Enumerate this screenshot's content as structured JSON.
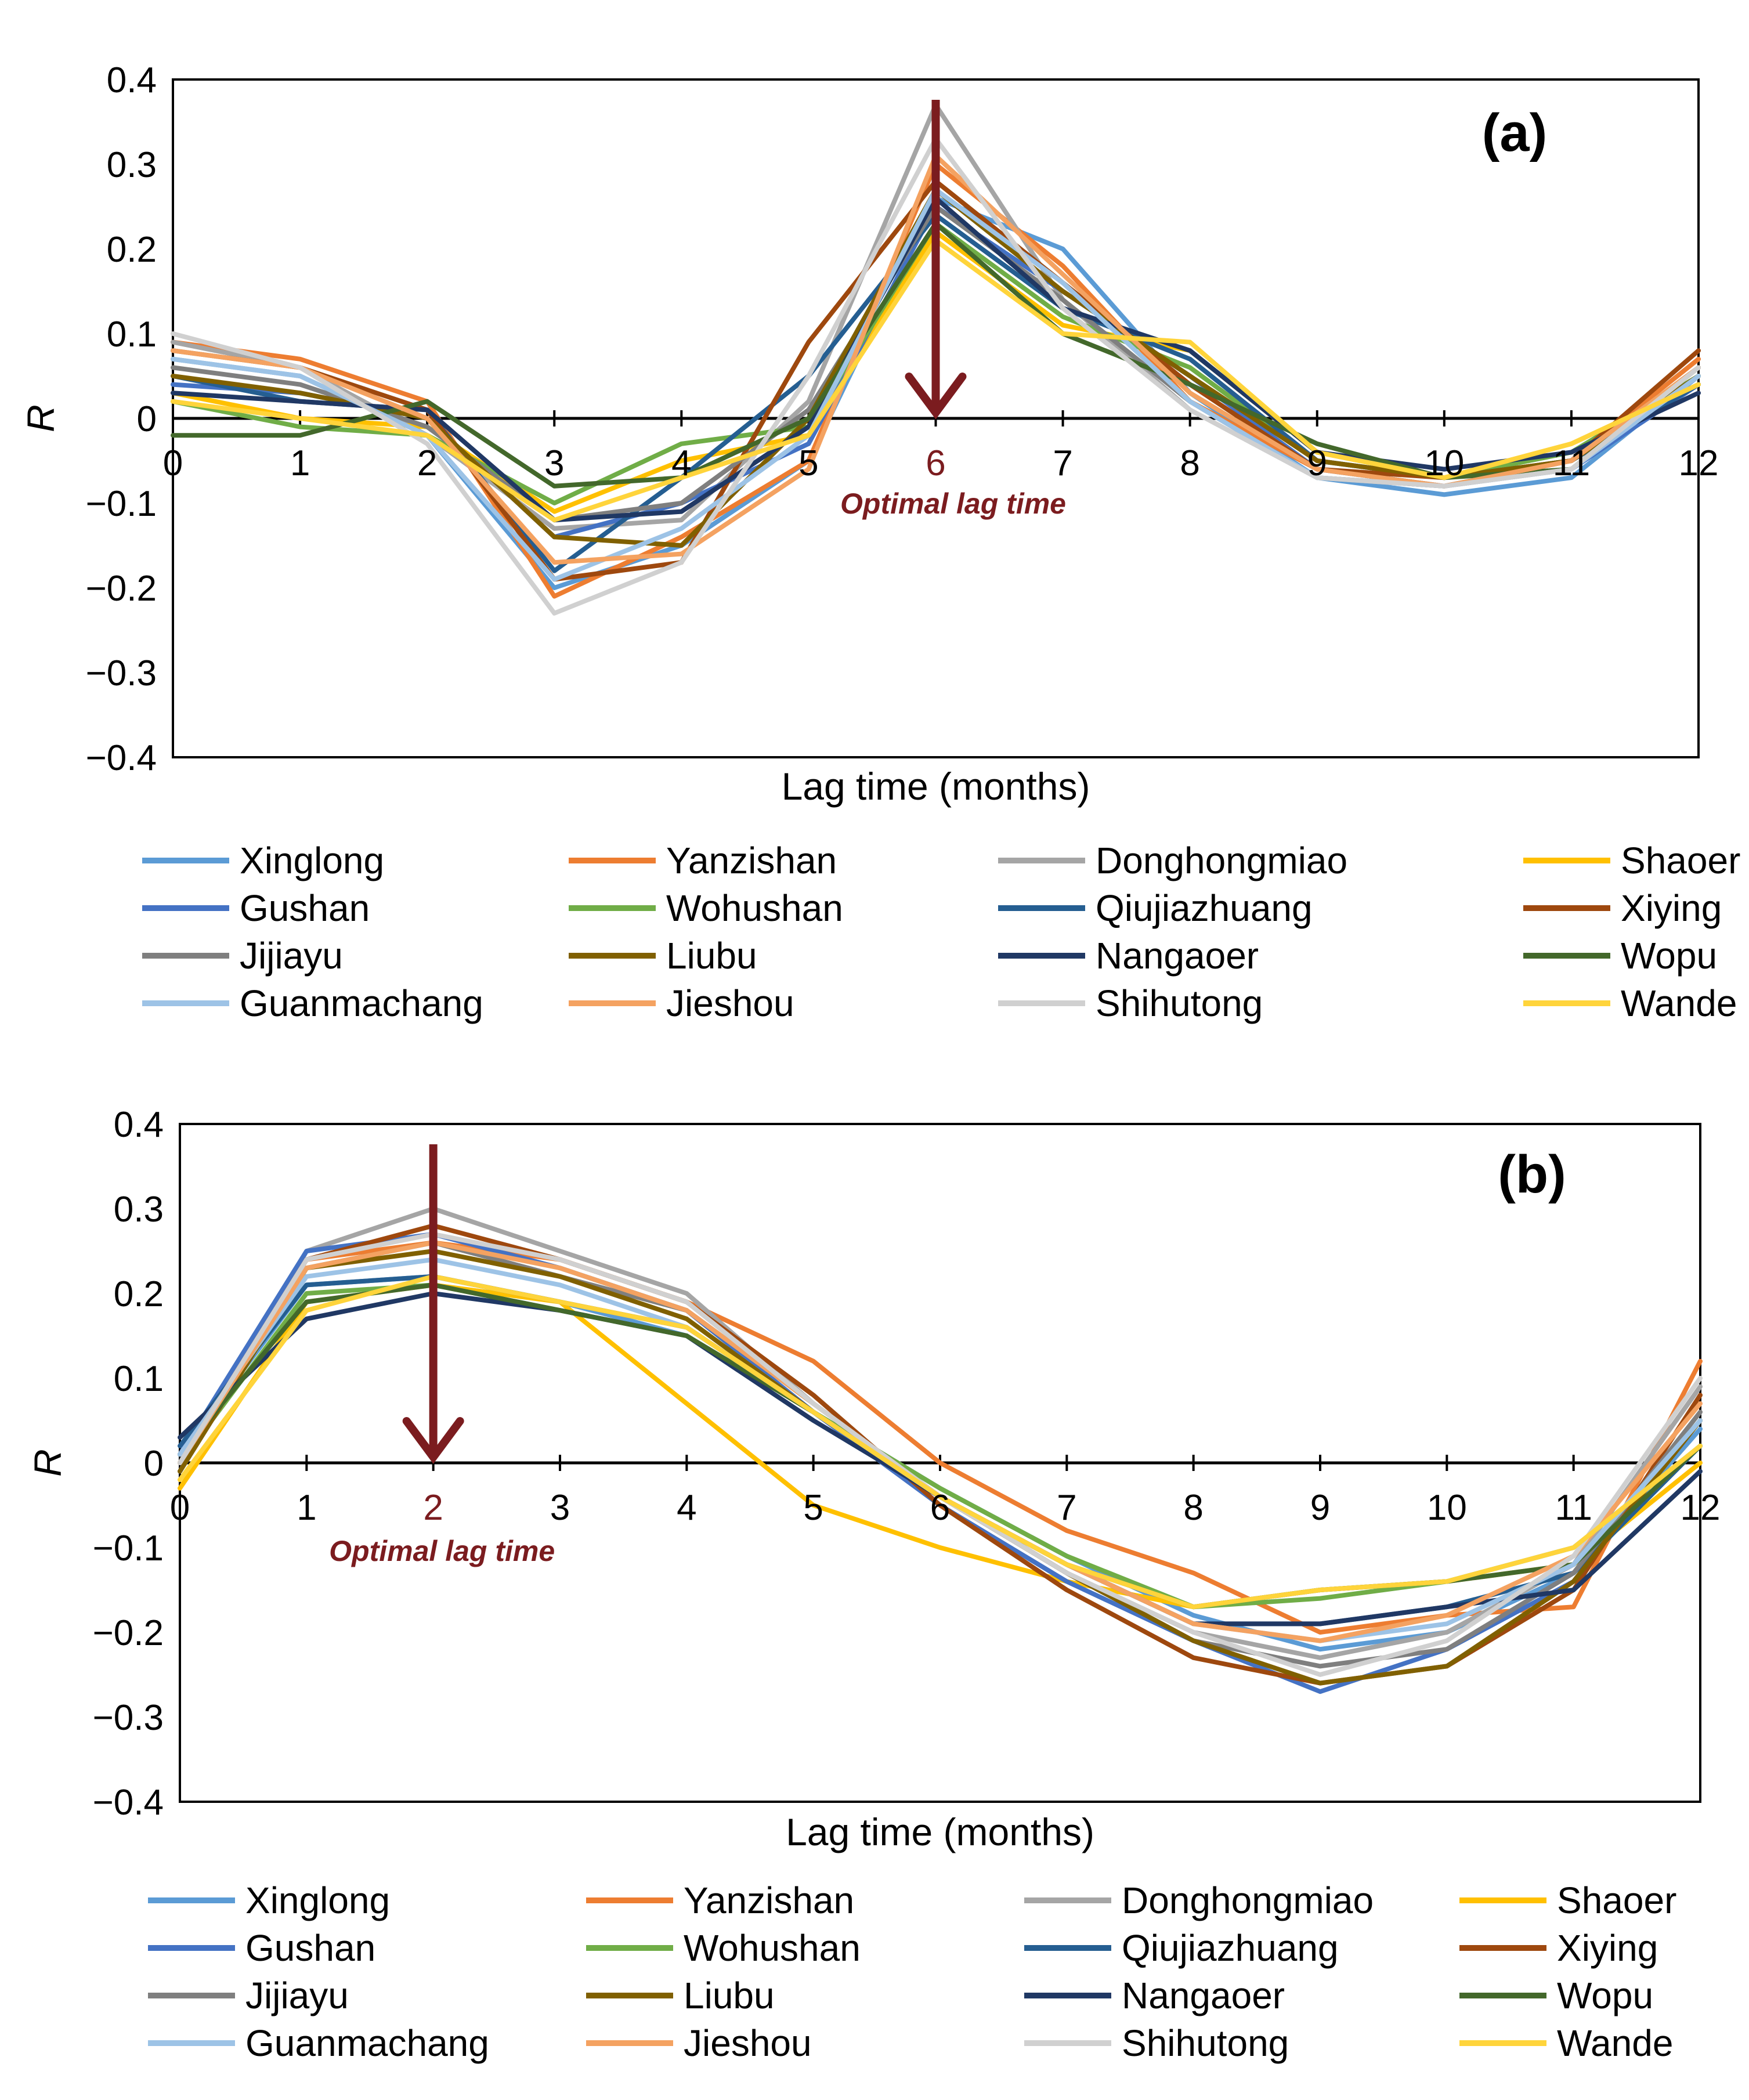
{
  "chart_data": [
    {
      "type": "line",
      "panel_label": "(a)",
      "xlabel": "Lag time (months)",
      "ylabel": "R",
      "x": [
        0,
        1,
        2,
        3,
        4,
        5,
        6,
        7,
        8,
        9,
        10,
        11,
        12
      ],
      "x_ticks": [
        "0",
        "1",
        "2",
        "3",
        "4",
        "5",
        "6",
        "7",
        "8",
        "9",
        "10",
        "11",
        "12"
      ],
      "ylim": [
        -0.4,
        0.4
      ],
      "y_ticks": [
        "0.4",
        "0.3",
        "0.2",
        "0.1",
        "0",
        "−0.1",
        "−0.2",
        "−0.3",
        "−0.4"
      ],
      "highlight_x": 6,
      "annotation": "Optimal lag time",
      "arrow_color": "#7b1c1f",
      "series": [
        {
          "name": "Xinglong",
          "color": "#5b9bd5",
          "values": [
            0.07,
            0.05,
            -0.02,
            -0.2,
            -0.15,
            -0.05,
            0.26,
            0.2,
            0.03,
            -0.07,
            -0.09,
            -0.07,
            0.05
          ]
        },
        {
          "name": "Yanzishan",
          "color": "#ed7d31",
          "values": [
            0.09,
            0.07,
            0.02,
            -0.21,
            -0.14,
            -0.05,
            0.3,
            0.18,
            0.02,
            -0.06,
            -0.08,
            -0.05,
            0.07
          ]
        },
        {
          "name": "Donghongmiao",
          "color": "#a5a5a5",
          "values": [
            0.09,
            0.06,
            -0.02,
            -0.13,
            -0.12,
            0.02,
            0.37,
            0.14,
            0.01,
            -0.07,
            -0.08,
            -0.05,
            0.06
          ]
        },
        {
          "name": "Shaoer",
          "color": "#ffc000",
          "values": [
            0.03,
            0.0,
            -0.01,
            -0.11,
            -0.05,
            -0.02,
            0.22,
            0.11,
            0.08,
            -0.04,
            -0.07,
            -0.03,
            0.04
          ]
        },
        {
          "name": "Gushan",
          "color": "#4472c4",
          "values": [
            0.04,
            0.03,
            0.0,
            -0.14,
            -0.1,
            -0.03,
            0.25,
            0.15,
            0.05,
            -0.06,
            -0.08,
            -0.06,
            0.04
          ]
        },
        {
          "name": "Wohushan",
          "color": "#70ad47",
          "values": [
            0.02,
            -0.01,
            -0.02,
            -0.1,
            -0.03,
            -0.01,
            0.23,
            0.12,
            0.06,
            -0.05,
            -0.07,
            -0.04,
            0.05
          ]
        },
        {
          "name": "Qiujiazhuang",
          "color": "#255e91",
          "values": [
            0.05,
            0.02,
            0.01,
            -0.18,
            -0.07,
            0.05,
            0.24,
            0.13,
            0.07,
            -0.05,
            -0.07,
            -0.05,
            0.04
          ]
        },
        {
          "name": "Xiying",
          "color": "#9e480e",
          "values": [
            0.08,
            0.06,
            0.01,
            -0.19,
            -0.17,
            0.09,
            0.28,
            0.16,
            0.04,
            -0.06,
            -0.07,
            -0.05,
            0.08
          ]
        },
        {
          "name": "Jijiayu",
          "color": "#7f7f7f",
          "values": [
            0.06,
            0.04,
            -0.01,
            -0.12,
            -0.1,
            0.01,
            0.25,
            0.14,
            0.02,
            -0.07,
            -0.08,
            -0.05,
            0.05
          ]
        },
        {
          "name": "Liubu",
          "color": "#806000",
          "values": [
            0.05,
            0.03,
            0.0,
            -0.14,
            -0.15,
            0.0,
            0.27,
            0.15,
            0.05,
            -0.05,
            -0.07,
            -0.05,
            0.05
          ]
        },
        {
          "name": "Nangaoer",
          "color": "#203864",
          "values": [
            0.03,
            0.02,
            0.01,
            -0.12,
            -0.11,
            -0.01,
            0.26,
            0.13,
            0.08,
            -0.04,
            -0.06,
            -0.04,
            0.03
          ]
        },
        {
          "name": "Wopu",
          "color": "#43682b",
          "values": [
            -0.02,
            -0.02,
            0.02,
            -0.08,
            -0.07,
            0.0,
            0.23,
            0.1,
            0.04,
            -0.03,
            -0.07,
            -0.06,
            0.06
          ]
        },
        {
          "name": "Guanmachang",
          "color": "#9dc3e6",
          "values": [
            0.07,
            0.05,
            -0.02,
            -0.19,
            -0.13,
            -0.02,
            0.27,
            0.16,
            0.02,
            -0.07,
            -0.08,
            -0.06,
            0.05
          ]
        },
        {
          "name": "Jieshou",
          "color": "#f4a261",
          "values": [
            0.08,
            0.06,
            0.0,
            -0.17,
            -0.16,
            -0.06,
            0.31,
            0.17,
            0.03,
            -0.06,
            -0.08,
            -0.05,
            0.06
          ]
        },
        {
          "name": "Shihutong",
          "color": "#d0d0d0",
          "values": [
            0.1,
            0.06,
            -0.03,
            -0.23,
            -0.17,
            0.05,
            0.33,
            0.13,
            0.01,
            -0.07,
            -0.08,
            -0.06,
            0.06
          ]
        },
        {
          "name": "Wande",
          "color": "#ffd43b",
          "values": [
            0.02,
            0.0,
            -0.02,
            -0.12,
            -0.07,
            -0.02,
            0.21,
            0.1,
            0.09,
            -0.04,
            -0.07,
            -0.03,
            0.04
          ]
        }
      ]
    },
    {
      "type": "line",
      "panel_label": "(b)",
      "xlabel": "Lag time (months)",
      "ylabel": "R",
      "x": [
        0,
        1,
        2,
        3,
        4,
        5,
        6,
        7,
        8,
        9,
        10,
        11,
        12
      ],
      "x_ticks": [
        "0",
        "1",
        "2",
        "3",
        "4",
        "5",
        "6",
        "7",
        "8",
        "9",
        "10",
        "11",
        "12"
      ],
      "ylim": [
        -0.4,
        0.4
      ],
      "y_ticks": [
        "0.4",
        "0.3",
        "0.2",
        "0.1",
        "0",
        "−0.1",
        "−0.2",
        "−0.3",
        "−0.4"
      ],
      "highlight_x": 2,
      "annotation": "Optimal lag time",
      "arrow_color": "#7b1c1f",
      "series": [
        {
          "name": "Xinglong",
          "color": "#5b9bd5",
          "values": [
            0.01,
            0.21,
            0.22,
            0.19,
            0.15,
            0.06,
            -0.03,
            -0.11,
            -0.18,
            -0.22,
            -0.2,
            -0.13,
            0.04
          ]
        },
        {
          "name": "Yanzishan",
          "color": "#ed7d31",
          "values": [
            0.0,
            0.24,
            0.26,
            0.24,
            0.19,
            0.12,
            0.0,
            -0.08,
            -0.13,
            -0.2,
            -0.18,
            -0.17,
            0.12
          ]
        },
        {
          "name": "Donghongmiao",
          "color": "#a5a5a5",
          "values": [
            -0.01,
            0.25,
            0.3,
            0.25,
            0.2,
            0.07,
            -0.04,
            -0.13,
            -0.2,
            -0.23,
            -0.2,
            -0.12,
            0.09
          ]
        },
        {
          "name": "Shaoer",
          "color": "#ffc000",
          "values": [
            -0.03,
            0.19,
            0.21,
            0.19,
            0.07,
            -0.05,
            -0.1,
            -0.14,
            -0.17,
            -0.15,
            -0.14,
            -0.12,
            0.0
          ]
        },
        {
          "name": "Gushan",
          "color": "#4472c4",
          "values": [
            0.01,
            0.25,
            0.27,
            0.23,
            0.18,
            0.06,
            -0.05,
            -0.14,
            -0.21,
            -0.27,
            -0.22,
            -0.14,
            0.05
          ]
        },
        {
          "name": "Wohushan",
          "color": "#70ad47",
          "values": [
            0.0,
            0.2,
            0.21,
            0.18,
            0.15,
            0.06,
            -0.03,
            -0.11,
            -0.17,
            -0.16,
            -0.14,
            -0.1,
            0.02
          ]
        },
        {
          "name": "Qiujiazhuang",
          "color": "#255e91",
          "values": [
            0.02,
            0.21,
            0.22,
            0.19,
            0.16,
            0.06,
            -0.04,
            -0.12,
            -0.19,
            -0.19,
            -0.17,
            -0.13,
            0.02
          ]
        },
        {
          "name": "Xiying",
          "color": "#9e480e",
          "values": [
            0.0,
            0.24,
            0.28,
            0.24,
            0.19,
            0.08,
            -0.05,
            -0.15,
            -0.23,
            -0.26,
            -0.24,
            -0.15,
            0.08
          ]
        },
        {
          "name": "Jijiayu",
          "color": "#7f7f7f",
          "values": [
            -0.01,
            0.23,
            0.26,
            0.22,
            0.18,
            0.07,
            -0.04,
            -0.13,
            -0.21,
            -0.24,
            -0.22,
            -0.13,
            0.06
          ]
        },
        {
          "name": "Liubu",
          "color": "#806000",
          "values": [
            -0.01,
            0.23,
            0.25,
            0.22,
            0.17,
            0.06,
            -0.04,
            -0.13,
            -0.21,
            -0.26,
            -0.24,
            -0.14,
            0.05
          ]
        },
        {
          "name": "Nangaoer",
          "color": "#203864",
          "values": [
            0.03,
            0.17,
            0.2,
            0.18,
            0.15,
            0.05,
            -0.04,
            -0.12,
            -0.19,
            -0.19,
            -0.17,
            -0.15,
            -0.01
          ]
        },
        {
          "name": "Wopu",
          "color": "#43682b",
          "values": [
            0.01,
            0.19,
            0.21,
            0.18,
            0.15,
            0.06,
            -0.04,
            -0.12,
            -0.17,
            -0.15,
            -0.14,
            -0.12,
            0.02
          ]
        },
        {
          "name": "Guanmachang",
          "color": "#9dc3e6",
          "values": [
            0.01,
            0.22,
            0.24,
            0.21,
            0.16,
            0.06,
            -0.04,
            -0.12,
            -0.19,
            -0.21,
            -0.19,
            -0.12,
            0.05
          ]
        },
        {
          "name": "Jieshou",
          "color": "#f4a261",
          "values": [
            0.0,
            0.23,
            0.26,
            0.23,
            0.18,
            0.07,
            -0.04,
            -0.12,
            -0.19,
            -0.21,
            -0.18,
            -0.11,
            0.07
          ]
        },
        {
          "name": "Shihutong",
          "color": "#d0d0d0",
          "values": [
            0.0,
            0.24,
            0.27,
            0.24,
            0.19,
            0.07,
            -0.04,
            -0.13,
            -0.2,
            -0.25,
            -0.21,
            -0.11,
            0.1
          ]
        },
        {
          "name": "Wande",
          "color": "#ffd43b",
          "values": [
            -0.02,
            0.18,
            0.22,
            0.19,
            0.16,
            0.06,
            -0.04,
            -0.12,
            -0.17,
            -0.15,
            -0.14,
            -0.1,
            0.02
          ]
        }
      ]
    }
  ]
}
